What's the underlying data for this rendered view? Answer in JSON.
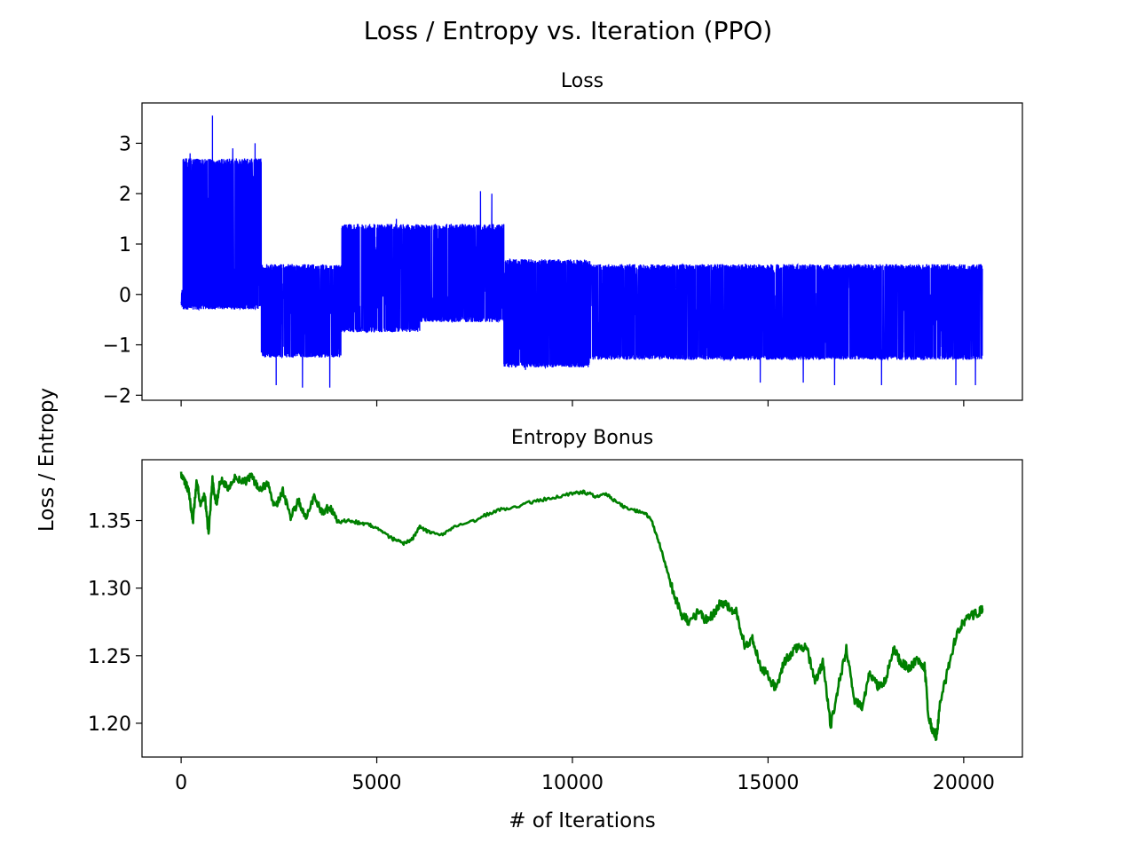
{
  "figure": {
    "suptitle": "Loss / Entropy vs. Iteration (PPO)",
    "shared_ylabel": "Loss / Entropy",
    "shared_xlabel": "# of Iterations"
  },
  "chart_data": [
    {
      "type": "line",
      "title": "Loss",
      "xlabel": "",
      "ylabel": "",
      "xlim": [
        -1000,
        21500
      ],
      "ylim": [
        -2.1,
        3.8
      ],
      "xticks": [
        0,
        5000,
        10000,
        15000,
        20000
      ],
      "yticks": [
        -2,
        -1,
        0,
        1,
        2,
        3
      ],
      "ytick_labels": [
        "−2",
        "−1",
        "0",
        "1",
        "2",
        "3"
      ],
      "show_xtick_labels": false,
      "grid": false,
      "series": [
        {
          "color": "#0000ff",
          "noisy_band": true,
          "x_range": [
            0,
            20480
          ],
          "segments": [
            {
              "x": [
                0,
                50
              ],
              "upper": 0.1,
              "lower": -0.25
            },
            {
              "x": [
                50,
                2050
              ],
              "upper": 2.7,
              "lower": -0.3
            },
            {
              "x": [
                2050,
                4100
              ],
              "upper": 0.6,
              "lower": -1.25
            },
            {
              "x": [
                4100,
                6100
              ],
              "upper": 1.4,
              "lower": -0.75
            },
            {
              "x": [
                6100,
                8250
              ],
              "upper": 1.4,
              "lower": -0.55
            },
            {
              "x": [
                8250,
                10450
              ],
              "upper": 0.7,
              "lower": -1.45
            },
            {
              "x": [
                10450,
                20480
              ],
              "upper": 0.6,
              "lower": -1.3
            }
          ],
          "spikes": [
            {
              "x": 230,
              "y": 2.8
            },
            {
              "x": 470,
              "y": 2.5
            },
            {
              "x": 800,
              "y": 3.55
            },
            {
              "x": 1320,
              "y": 2.9
            },
            {
              "x": 1890,
              "y": 3.0
            },
            {
              "x": 1000,
              "y": 2.6
            },
            {
              "x": 2430,
              "y": -1.8
            },
            {
              "x": 3100,
              "y": -1.85
            },
            {
              "x": 3800,
              "y": -1.85
            },
            {
              "x": 7650,
              "y": 2.05
            },
            {
              "x": 7940,
              "y": 2.0
            },
            {
              "x": 5500,
              "y": 1.5
            },
            {
              "x": 8800,
              "y": -1.5
            },
            {
              "x": 14800,
              "y": -1.75
            },
            {
              "x": 15900,
              "y": -1.75
            },
            {
              "x": 16700,
              "y": -1.8
            },
            {
              "x": 17900,
              "y": -1.8
            },
            {
              "x": 19800,
              "y": -1.8
            },
            {
              "x": 20300,
              "y": -1.8
            }
          ]
        }
      ]
    },
    {
      "type": "line",
      "title": "Entropy Bonus",
      "xlabel": "# of Iterations",
      "ylabel": "",
      "xlim": [
        -1000,
        21500
      ],
      "ylim": [
        1.175,
        1.395
      ],
      "xticks": [
        0,
        5000,
        10000,
        15000,
        20000
      ],
      "xtick_labels": [
        "0",
        "5000",
        "10000",
        "15000",
        "20000"
      ],
      "yticks": [
        1.2,
        1.25,
        1.3,
        1.35
      ],
      "ytick_labels": [
        "1.20",
        "1.25",
        "1.30",
        "1.35"
      ],
      "grid": false,
      "series": [
        {
          "color": "#008000",
          "x": [
            0,
            100,
            200,
            300,
            400,
            500,
            600,
            700,
            800,
            900,
            1000,
            1200,
            1400,
            1600,
            1800,
            2000,
            2200,
            2400,
            2600,
            2800,
            3000,
            3200,
            3400,
            3600,
            3800,
            4000,
            4300,
            4600,
            4900,
            5200,
            5500,
            5700,
            5900,
            6100,
            6300,
            6600,
            7000,
            7500,
            8000,
            8500,
            9000,
            9500,
            10000,
            10300,
            10600,
            10900,
            11200,
            11500,
            11800,
            12000,
            12200,
            12400,
            12600,
            12800,
            13000,
            13200,
            13400,
            13600,
            13800,
            14000,
            14200,
            14400,
            14600,
            14800,
            15000,
            15200,
            15400,
            15600,
            15800,
            16000,
            16200,
            16400,
            16600,
            16800,
            17000,
            17200,
            17400,
            17600,
            17800,
            18000,
            18200,
            18400,
            18600,
            18800,
            19000,
            19100,
            19200,
            19300,
            19400,
            19600,
            19800,
            20000,
            20200,
            20400,
            20480
          ],
          "y": [
            1.385,
            1.378,
            1.372,
            1.348,
            1.38,
            1.36,
            1.37,
            1.34,
            1.38,
            1.362,
            1.38,
            1.375,
            1.382,
            1.378,
            1.383,
            1.372,
            1.378,
            1.36,
            1.372,
            1.352,
            1.365,
            1.352,
            1.368,
            1.356,
            1.36,
            1.349,
            1.35,
            1.348,
            1.346,
            1.34,
            1.335,
            1.333,
            1.336,
            1.345,
            1.342,
            1.339,
            1.345,
            1.35,
            1.357,
            1.36,
            1.364,
            1.367,
            1.37,
            1.371,
            1.368,
            1.369,
            1.362,
            1.358,
            1.356,
            1.352,
            1.335,
            1.315,
            1.295,
            1.28,
            1.275,
            1.282,
            1.277,
            1.28,
            1.29,
            1.285,
            1.282,
            1.258,
            1.262,
            1.243,
            1.235,
            1.225,
            1.245,
            1.252,
            1.258,
            1.255,
            1.23,
            1.245,
            1.198,
            1.228,
            1.255,
            1.218,
            1.212,
            1.238,
            1.228,
            1.232,
            1.255,
            1.245,
            1.24,
            1.248,
            1.242,
            1.205,
            1.195,
            1.19,
            1.215,
            1.24,
            1.265,
            1.275,
            1.28,
            1.282,
            1.285
          ]
        }
      ]
    }
  ]
}
